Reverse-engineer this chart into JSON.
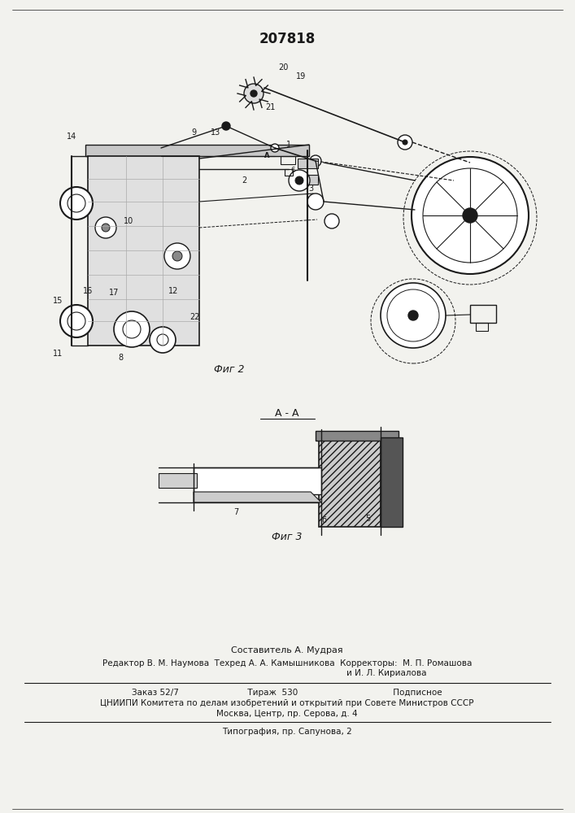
{
  "patent_number": "207818",
  "fig2_label": "Фиг 2",
  "fig3_label": "Фиг 3",
  "section_label": "А - А",
  "footer_line1": "Составитель А. Мудрая",
  "footer_line2": "Редактор В. М. Наумова  Техред А. А. Камышникова  Корректоры:  М. П. Ромашова",
  "footer_line3": "и И. Л. Кириалова",
  "footer_line4": "Заказ 52/7                          Тираж  530                                    Подписное",
  "footer_line5": "ЦНИИПИ Комитета по делам изобретений и открытий при Совете Министров СССР",
  "footer_line6": "Москва, Центр, пр. Серова, д. 4",
  "footer_line7": "Типография, пр. Сапунова, 2",
  "bg_color": "#f2f2ee",
  "line_color": "#1a1a1a"
}
